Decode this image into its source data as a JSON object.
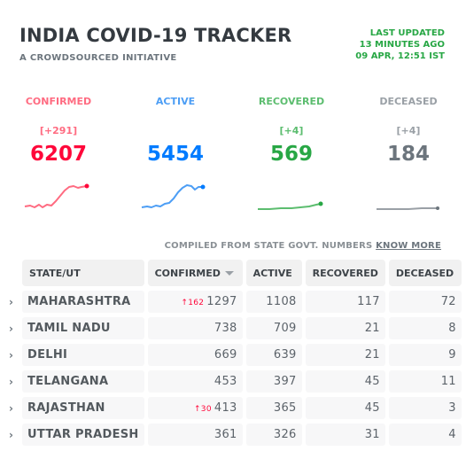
{
  "header": {
    "title": "INDIA COVID-19 TRACKER",
    "subtitle": "A CROWDSOURCED INITIATIVE",
    "last_updated_label": "LAST UPDATED",
    "last_updated_relative": "13 MINUTES AGO",
    "last_updated_time": "09 APR, 12:51 IST"
  },
  "stats": {
    "confirmed": {
      "label": "CONFIRMED",
      "delta": "[+291]",
      "value": "6207",
      "color": "#ff073a"
    },
    "active": {
      "label": "ACTIVE",
      "delta": "",
      "value": "5454",
      "color": "#007bff"
    },
    "recovered": {
      "label": "RECOVERED",
      "delta": "[+4]",
      "value": "569",
      "color": "#28a745"
    },
    "deceased": {
      "label": "DECEASED",
      "delta": "[+4]",
      "value": "184",
      "color": "#6c757d"
    }
  },
  "compiled": {
    "text": "COMPILED FROM STATE GOVT. NUMBERS",
    "link": "KNOW MORE"
  },
  "table": {
    "headers": {
      "state": "STATE/UT",
      "confirmed": "CONFIRMED",
      "active": "ACTIVE",
      "recovered": "RECOVERED",
      "deceased": "DECEASED"
    },
    "rows": [
      {
        "state": "MAHARASHTRA",
        "delta_confirmed": "↑162",
        "confirmed": "1297",
        "active": "1108",
        "recovered": "117",
        "deceased": "72"
      },
      {
        "state": "TAMIL NADU",
        "delta_confirmed": "",
        "confirmed": "738",
        "active": "709",
        "recovered": "21",
        "deceased": "8"
      },
      {
        "state": "DELHI",
        "delta_confirmed": "",
        "confirmed": "669",
        "active": "639",
        "recovered": "21",
        "deceased": "9"
      },
      {
        "state": "TELANGANA",
        "delta_confirmed": "",
        "confirmed": "453",
        "active": "397",
        "recovered": "45",
        "deceased": "11"
      },
      {
        "state": "RAJASTHAN",
        "delta_confirmed": "↑30",
        "confirmed": "413",
        "active": "365",
        "recovered": "45",
        "deceased": "3"
      },
      {
        "state": "UTTAR PRADESH",
        "delta_confirmed": "",
        "confirmed": "361",
        "active": "326",
        "recovered": "31",
        "deceased": "4"
      }
    ]
  }
}
